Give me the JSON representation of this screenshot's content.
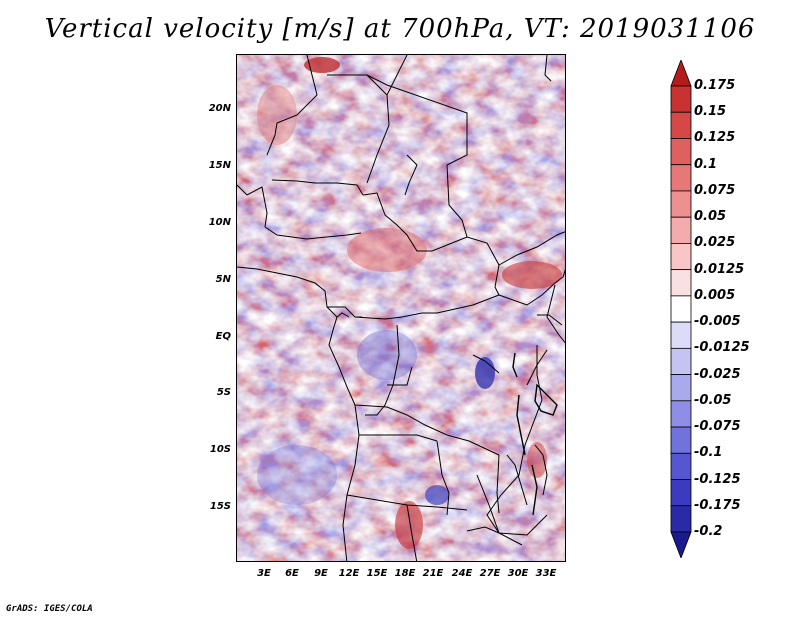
{
  "title": "Vertical velocity [m/s] at 700hPa, VT: 2019031106",
  "credit": "GrADS: IGES/COLA",
  "map": {
    "lat_labels": [
      "20N",
      "15N",
      "10N",
      "5N",
      "EQ",
      "5S",
      "10S",
      "15S"
    ],
    "lon_labels": [
      "3E",
      "6E",
      "9E",
      "12E",
      "15E",
      "18E",
      "21E",
      "24E",
      "27E",
      "30E",
      "33E"
    ],
    "lat_range": [
      -19.5,
      24.5
    ],
    "lon_range": [
      0,
      35
    ]
  },
  "colorbar": {
    "labels": [
      "0.175",
      "0.15",
      "0.125",
      "0.1",
      "0.075",
      "0.05",
      "0.025",
      "0.0125",
      "0.005",
      "-0.005",
      "-0.0125",
      "-0.025",
      "-0.05",
      "-0.075",
      "-0.1",
      "-0.125",
      "-0.175",
      "-0.2"
    ],
    "colors": [
      "#b41c1c",
      "#c83232",
      "#d64848",
      "#e05f5f",
      "#e87777",
      "#ef9090",
      "#f4abab",
      "#f8c6c6",
      "#fbe0e0",
      "#ffffff",
      "#dcdcf8",
      "#c4c4f2",
      "#a9a9ee",
      "#8e8ee6",
      "#7272dc",
      "#5656d0",
      "#3b3bc0",
      "#2a2aa8",
      "#1a1a90"
    ]
  }
}
